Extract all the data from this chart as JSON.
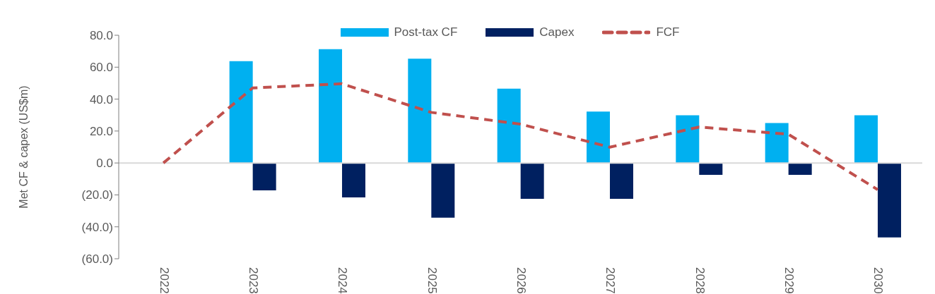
{
  "chart_data": {
    "type": "bar",
    "ylabel": "Met CF & capex (US$m)",
    "categories": [
      "2022",
      "2023",
      "2024",
      "2025",
      "2026",
      "2027",
      "2028",
      "2029",
      "2030"
    ],
    "series": [
      {
        "name": "Post-tax CF",
        "color": "#00b0f0",
        "values": [
          0,
          63.8,
          71.3,
          65.3,
          46.5,
          32.2,
          29.9,
          25.0,
          29.9
        ]
      },
      {
        "name": "Capex",
        "color": "#002060",
        "values": [
          0,
          -17.2,
          -21.6,
          -34.3,
          -22.5,
          -22.5,
          -7.4,
          -7.4,
          -46.6
        ]
      },
      {
        "name": "FCF",
        "type": "line",
        "color": "#c0504d",
        "line_style": "dashed",
        "marker": "none",
        "values": [
          0,
          47.0,
          49.6,
          31.7,
          24.3,
          9.9,
          22.5,
          18.0,
          -16.7
        ]
      }
    ],
    "ylim": [
      -60,
      80
    ],
    "yticks": [
      {
        "value": -60,
        "label": "(60.0)"
      },
      {
        "value": -40,
        "label": "(40.0)"
      },
      {
        "value": -20,
        "label": "(20.0)"
      },
      {
        "value": 0,
        "label": "0.0"
      },
      {
        "value": 20,
        "label": "20.0"
      },
      {
        "value": 40,
        "label": "40.0"
      },
      {
        "value": 60,
        "label": "60.0"
      },
      {
        "value": 80,
        "label": "80.0"
      }
    ],
    "ref_lines": [
      {
        "axis": "y",
        "value": 0,
        "color": "#d9d9d9"
      }
    ],
    "grid": false,
    "legend": "top"
  }
}
